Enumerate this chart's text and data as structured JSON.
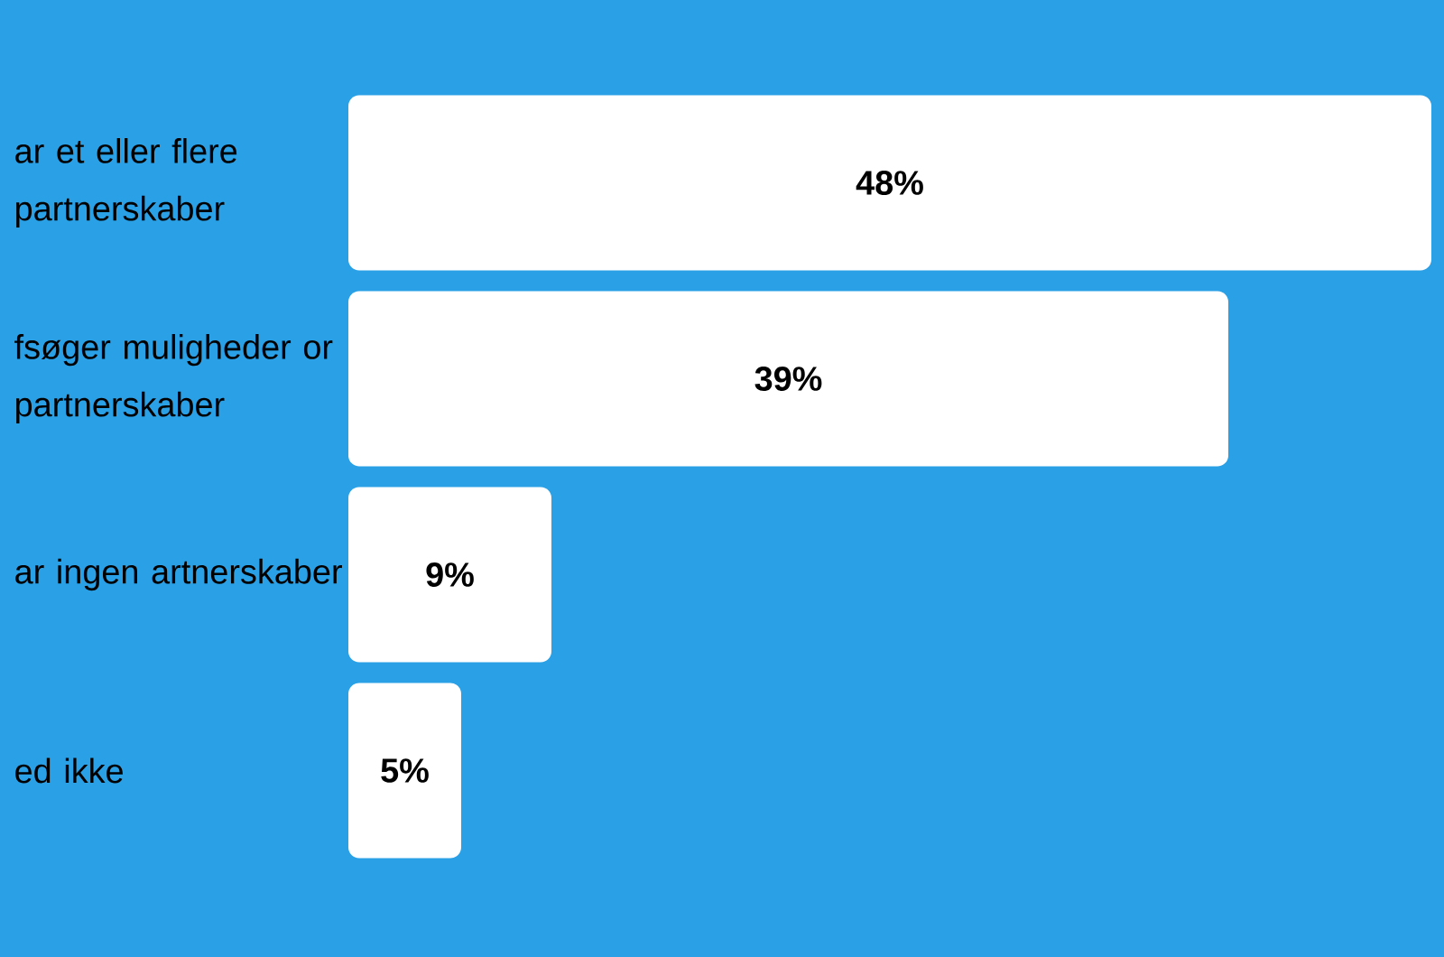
{
  "chart_data": {
    "type": "bar",
    "orientation": "horizontal",
    "categories": [
      "ar et eller flere partnerskaber",
      "fsøger muligheder or partnerskaber",
      "ar ingen artnerskaber",
      "ed ikke"
    ],
    "values": [
      48,
      39,
      9,
      5
    ],
    "value_labels": [
      "48%",
      "39%",
      "9%",
      "5%"
    ],
    "color": "#ffffff"
  }
}
